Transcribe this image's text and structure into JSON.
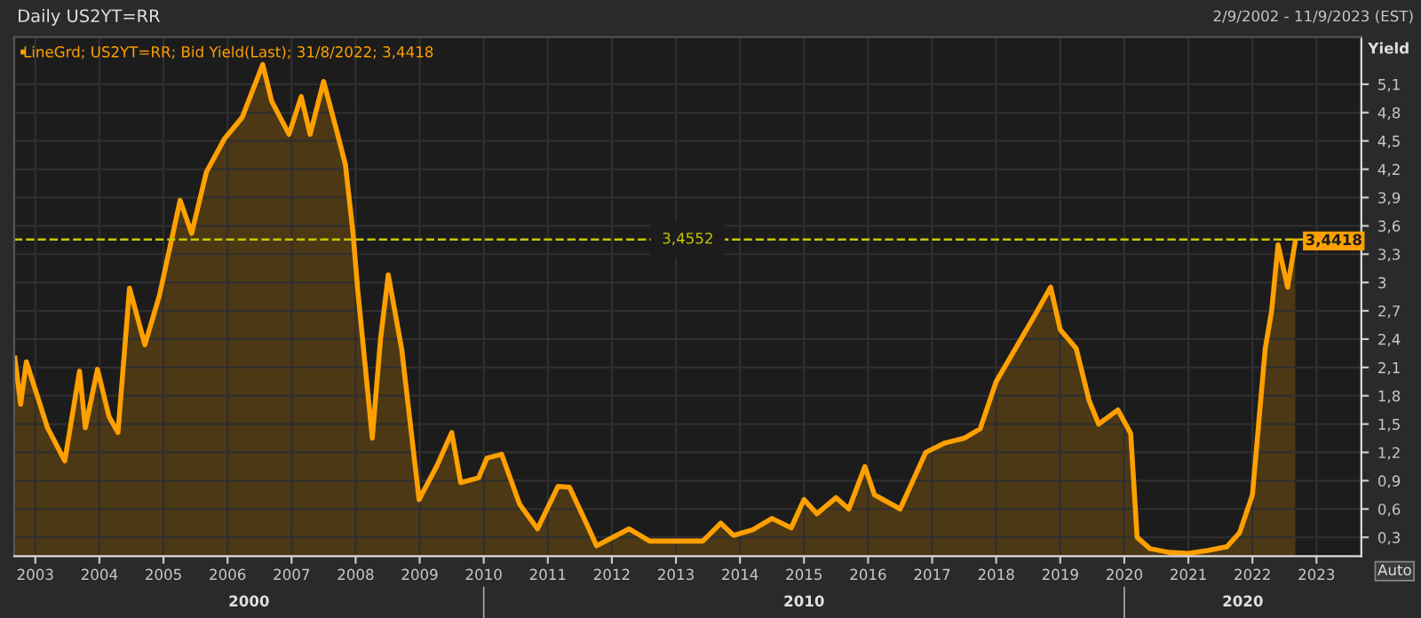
{
  "chart_data": {
    "type": "area",
    "title": "Daily US2YT=RR",
    "subtitle": "2/9/2002 - 11/9/2023 (EST)",
    "ylabel": "Yield",
    "annotations": [
      "Auto",
      "2000",
      "2010",
      "2020"
    ],
    "legend": "top left",
    "grid": true,
    "series": [
      {
        "name": "LineGrd; US2YT=RR; Bid Yield(Last); 31/8/2022; 3,4418",
        "color": "#ffa000",
        "x": [
          2002.68,
          2002.77,
          2002.86,
          2003.19,
          2003.46,
          2003.69,
          2003.78,
          2003.97,
          2004.15,
          2004.29,
          2004.47,
          2004.71,
          2004.94,
          2005.26,
          2005.44,
          2005.67,
          2005.95,
          2006.23,
          2006.55,
          2006.69,
          2006.96,
          2007.15,
          2007.29,
          2007.5,
          2007.7,
          2007.84,
          2007.96,
          2008.03,
          2008.26,
          2008.39,
          2008.51,
          2008.72,
          2008.99,
          2009.27,
          2009.5,
          2009.64,
          2009.92,
          2010.05,
          2010.28,
          2010.56,
          2010.84,
          2011.16,
          2011.34,
          2011.67,
          2011.76,
          2012.27,
          2012.59,
          2013.42,
          2013.7,
          2013.9,
          2014.2,
          2014.5,
          2014.8,
          2015.0,
          2015.2,
          2015.5,
          2015.7,
          2015.95,
          2016.1,
          2016.5,
          2016.9,
          2017.2,
          2017.5,
          2017.75,
          2018.0,
          2018.3,
          2018.6,
          2018.85,
          2019.0,
          2019.25,
          2019.45,
          2019.6,
          2019.9,
          2020.1,
          2020.2,
          2020.4,
          2020.7,
          2021.0,
          2021.3,
          2021.6,
          2021.8,
          2022.0,
          2022.2,
          2022.3,
          2022.4,
          2022.55,
          2022.67
        ],
        "values": [
          2.2,
          1.71,
          2.16,
          1.46,
          1.11,
          2.06,
          1.46,
          2.08,
          1.58,
          1.41,
          2.94,
          2.34,
          2.87,
          3.87,
          3.52,
          4.17,
          4.52,
          4.75,
          5.31,
          4.92,
          4.57,
          4.97,
          4.57,
          5.13,
          4.62,
          4.25,
          3.52,
          2.94,
          1.35,
          2.41,
          3.08,
          2.29,
          0.7,
          1.06,
          1.41,
          0.88,
          0.93,
          1.14,
          1.18,
          0.65,
          0.39,
          0.84,
          0.83,
          0.35,
          0.21,
          0.39,
          0.26,
          0.26,
          0.45,
          0.32,
          0.38,
          0.5,
          0.4,
          0.7,
          0.55,
          0.72,
          0.6,
          1.05,
          0.75,
          0.6,
          1.2,
          1.3,
          1.35,
          1.45,
          1.95,
          2.3,
          2.65,
          2.95,
          2.5,
          2.3,
          1.75,
          1.5,
          1.65,
          1.4,
          0.3,
          0.18,
          0.14,
          0.13,
          0.16,
          0.2,
          0.35,
          0.75,
          2.3,
          2.7,
          3.4,
          2.95,
          3.44
        ],
        "value_labels": [
          null,
          null,
          null,
          null,
          null,
          null,
          null,
          null,
          null,
          null,
          null,
          null,
          null,
          null,
          null,
          null,
          null,
          null,
          null,
          null,
          null,
          null,
          null,
          null,
          null,
          null,
          null,
          null,
          null,
          null,
          null,
          null,
          null,
          null,
          null,
          null,
          null,
          null,
          null,
          null,
          null,
          null,
          null,
          null,
          null,
          null,
          null,
          null,
          null,
          null,
          null,
          null,
          null,
          null,
          null,
          null,
          null,
          null,
          null,
          null,
          null,
          null,
          null,
          null,
          null,
          null,
          null,
          null,
          null,
          null,
          null,
          null,
          null,
          null,
          null,
          null,
          null,
          null,
          null,
          null,
          null,
          null,
          null,
          null,
          null,
          null,
          "3,4418"
        ]
      }
    ],
    "ref_lines": [
      {
        "axis": "y",
        "value": 3.4552,
        "label": "3,4552",
        "color": "#c8c800",
        "line_style": "dashed"
      }
    ],
    "xlim": [
      2002.67,
      2023.7
    ],
    "xticks": [
      2003,
      2004,
      2005,
      2006,
      2007,
      2008,
      2009,
      2010,
      2011,
      2012,
      2013,
      2014,
      2015,
      2016,
      2017,
      2018,
      2019,
      2020,
      2021,
      2022,
      2023
    ],
    "ylim": [
      0.1,
      5.6
    ],
    "yticks": [
      {
        "value": 0.3,
        "label": "0,3"
      },
      {
        "value": 0.6,
        "label": "0,6"
      },
      {
        "value": 0.9,
        "label": "0,9"
      },
      {
        "value": 1.2,
        "label": "1,2"
      },
      {
        "value": 1.5,
        "label": "1,5"
      },
      {
        "value": 1.8,
        "label": "1,8"
      },
      {
        "value": 2.1,
        "label": "2,1"
      },
      {
        "value": 2.4,
        "label": "2,4"
      },
      {
        "value": 2.7,
        "label": "2,7"
      },
      {
        "value": 3,
        "label": "3"
      },
      {
        "value": 3.3,
        "label": "3,3"
      },
      {
        "value": 3.6,
        "label": "3,6"
      },
      {
        "value": 3.9,
        "label": "3,9"
      },
      {
        "value": 4.2,
        "label": "4,2"
      },
      {
        "value": 4.5,
        "label": "4,5"
      },
      {
        "value": 4.8,
        "label": "4,8"
      },
      {
        "value": 5.1,
        "label": "5,1"
      }
    ]
  }
}
